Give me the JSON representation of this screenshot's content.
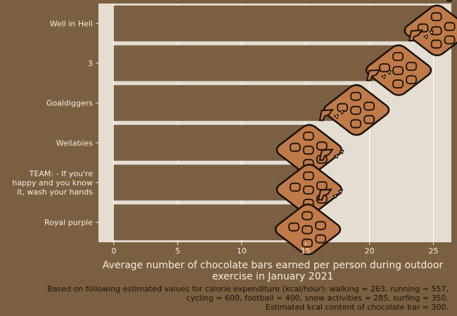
{
  "chart_data": {
    "type": "bar",
    "orientation": "horizontal",
    "categories": [
      "Well in Hell",
      "3",
      "Goaldiggers",
      "Wellabies",
      "TEAM: - If you're happy and you know it, wash your hands",
      "Royal purple"
    ],
    "category_lines": [
      [
        "Well in Hell"
      ],
      [
        "3"
      ],
      [
        "Goaldiggers"
      ],
      [
        "Wellabies"
      ],
      [
        "TEAM: - If you're",
        "happy and you know",
        "it, wash your hands"
      ],
      [
        "Royal purple"
      ]
    ],
    "values": [
      25.5,
      22.5,
      19.2,
      15.5,
      15.5,
      15.4
    ],
    "xlim": [
      -1.2,
      26.4
    ],
    "xticks": [
      0,
      5,
      10,
      15,
      20,
      25
    ],
    "xlabel_lines": [
      "Average number of chocolate bars earned per person during outdoor",
      "exercise in January 2021"
    ],
    "caption_lines": [
      "Based on following estimated values for calorie expenditure (kcal/hour): walking = 263, running = 557,",
      "cycling = 600, football = 400, snow activities = 285, surfing = 350.",
      "Estimated kcal content of chocolate bar = 300."
    ],
    "grid": true,
    "legend": "none",
    "colors": {
      "background": "#7a5f42",
      "panel": "#e5dcd2",
      "bar": "#7a5f42",
      "gridline": "#ffffff",
      "chocolate": "#c07a4a",
      "chocolate_outline": "#1a1208",
      "text": "#f3ece2",
      "caption_text": "#1a1208"
    }
  }
}
